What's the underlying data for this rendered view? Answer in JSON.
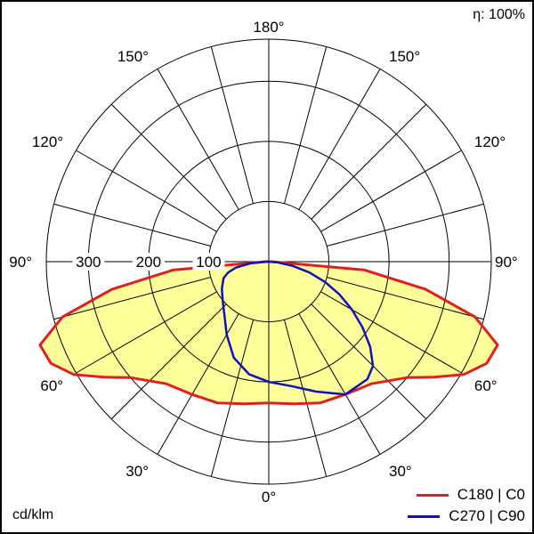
{
  "efficiency_label": "η: 100%",
  "units_label": "cd/klm",
  "colors": {
    "c0": "#e02020",
    "c90": "#1010c0",
    "fill": "#ffff99",
    "grid": "#000000"
  },
  "chart_data": {
    "type": "polar",
    "title": "",
    "radial_ticks": [
      100,
      200,
      300
    ],
    "radial_max": 370,
    "angle_labels": [
      "0°",
      "30°",
      "60°",
      "90°",
      "120°",
      "150°",
      "180°"
    ],
    "grid_step_deg": 15,
    "series": [
      {
        "name": "C180 | C0",
        "color": "#e02020",
        "filled": true,
        "symmetric": true,
        "gamma": [
          0,
          10,
          20,
          30,
          40,
          50,
          55,
          60,
          65,
          70,
          75,
          80,
          85,
          90
        ],
        "values": [
          235,
          240,
          250,
          255,
          265,
          300,
          335,
          375,
          400,
          405,
          355,
          265,
          160,
          5
        ]
      },
      {
        "name": "C270 | C90",
        "color": "#1010c0",
        "filled": false,
        "angles": [
          -90,
          -85,
          -80,
          -75,
          -70,
          -60,
          -50,
          -40,
          -30,
          -20,
          -10,
          0,
          10,
          20,
          30,
          40,
          45,
          50,
          55,
          60,
          65,
          70,
          75,
          80,
          85,
          90
        ],
        "values": [
          5,
          30,
          55,
          70,
          80,
          90,
          100,
          115,
          140,
          170,
          190,
          200,
          210,
          230,
          255,
          255,
          245,
          220,
          190,
          160,
          130,
          100,
          70,
          40,
          15,
          0
        ]
      }
    ]
  }
}
